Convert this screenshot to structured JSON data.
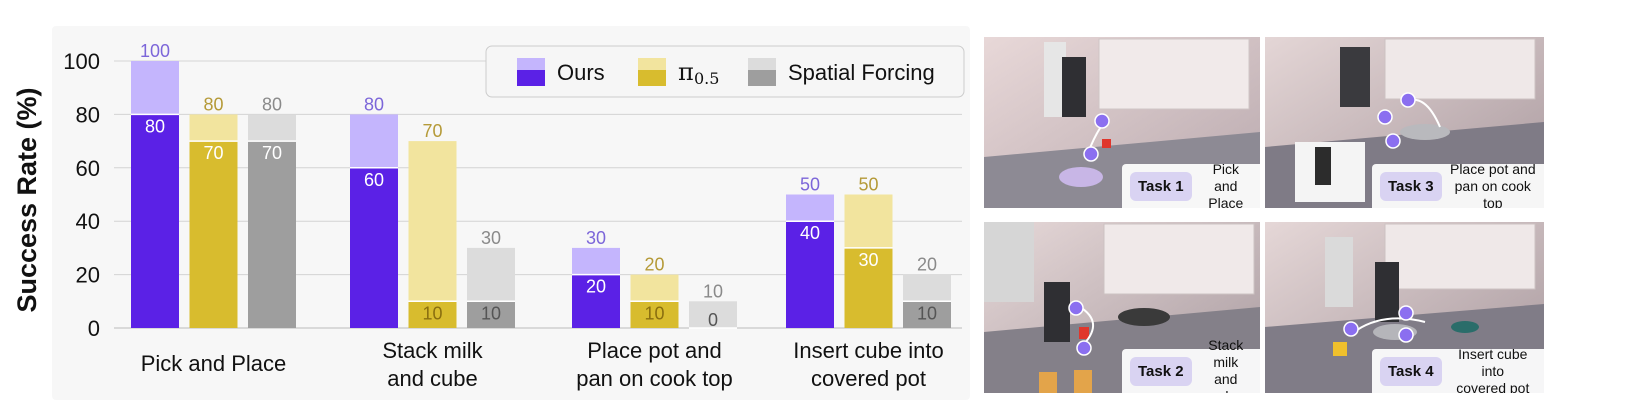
{
  "chart_data": {
    "type": "bar",
    "ylabel": "Success Rate (%)",
    "ylim": [
      0,
      100
    ],
    "yticks": [
      "0",
      "20",
      "40",
      "60",
      "80",
      "100"
    ],
    "categories": [
      "Pick and Place",
      "Stack milk and cube",
      "Place pot and pan on cook top",
      "Insert cube into covered pot"
    ],
    "category_lines": [
      [
        "Pick and Place"
      ],
      [
        "Stack milk",
        "and cube"
      ],
      [
        "Place pot and",
        "pan on cook top"
      ],
      [
        "Insert cube into",
        "covered pot"
      ]
    ],
    "series": [
      {
        "name": "Ours",
        "values": [
          80,
          60,
          20,
          40
        ],
        "upper_values": [
          100,
          80,
          30,
          50
        ],
        "color": "#5b21e6",
        "light_color": "#c4b5fd",
        "label_color": "#7c66d9"
      },
      {
        "name": "π0.5",
        "legend_main": "π",
        "legend_sub": "0.5",
        "values": [
          70,
          10,
          10,
          30
        ],
        "upper_values": [
          80,
          70,
          20,
          50
        ],
        "color": "#d8bc2e",
        "light_color": "#f2e49e",
        "label_color": "#b59a38"
      },
      {
        "name": "Spatial Forcing",
        "values": [
          70,
          10,
          0,
          10
        ],
        "upper_values": [
          80,
          30,
          10,
          20
        ],
        "color": "#9e9e9e",
        "light_color": "#dcdcdc",
        "label_color": "#8a8a8a"
      }
    ],
    "grid": true,
    "legend_position": "top-right"
  },
  "tasks": [
    {
      "tag": "Task 1",
      "line1": "Pick and",
      "line2": "Place"
    },
    {
      "tag": "Task 3",
      "line1": "Place pot and",
      "line2": "pan on cook top"
    },
    {
      "tag": "Task 2",
      "line1": "Stack milk",
      "line2": "and cube"
    },
    {
      "tag": "Task 4",
      "line1": "Insert cube into",
      "line2": "covered pot"
    }
  ]
}
